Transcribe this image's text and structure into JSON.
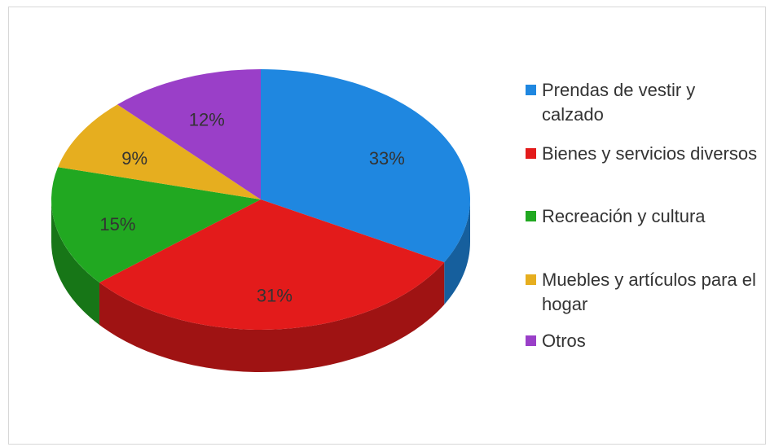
{
  "chart_data": {
    "type": "pie",
    "categories": [
      "Prendas de vestir y calzado",
      "Bienes y servicios diversos",
      "Recreación y cultura",
      "Muebles y artículos para el hogar",
      "Otros"
    ],
    "values": [
      33,
      31,
      15,
      9,
      12
    ],
    "value_labels": [
      "33%",
      "31%",
      "15%",
      "9%",
      "12%"
    ],
    "colors": [
      "#1f87e0",
      "#e31b1b",
      "#21a821",
      "#e6ae1f",
      "#9a3fc8"
    ],
    "legend": "right"
  }
}
